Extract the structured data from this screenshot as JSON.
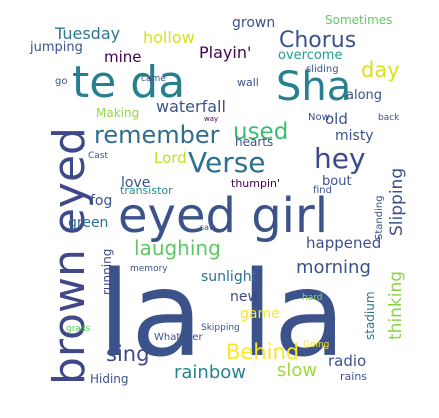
{
  "words": [
    {
      "text": "la la",
      "color": "#3b528b"
    },
    {
      "text": "eyed girl",
      "color": "#3b528b"
    },
    {
      "text": "brown eyed",
      "color": "#3f4889"
    },
    {
      "text": "te da",
      "color": "#27808e"
    },
    {
      "text": "Sha",
      "color": "#27808e"
    },
    {
      "text": "Verse",
      "color": "#2c728e"
    },
    {
      "text": "hey",
      "color": "#3e4989"
    },
    {
      "text": "remember",
      "color": "#2f6c8e"
    },
    {
      "text": "laughing",
      "color": "#5ec962"
    },
    {
      "text": "Chorus",
      "color": "#3b528b"
    },
    {
      "text": "used",
      "color": "#3ebc73"
    },
    {
      "text": "day",
      "color": "#d8e219"
    },
    {
      "text": "sing",
      "color": "#3f4889"
    },
    {
      "text": "Behind",
      "color": "#fde725"
    },
    {
      "text": "rainbow",
      "color": "#25848e"
    },
    {
      "text": "slow",
      "color": "#a0da39"
    },
    {
      "text": "morning",
      "color": "#3b528b"
    },
    {
      "text": "happened",
      "color": "#3b528b"
    },
    {
      "text": "thinking",
      "color": "#8bd646"
    },
    {
      "text": "Slipping",
      "color": "#3b528b"
    },
    {
      "text": "Tuesday",
      "color": "#2a788e"
    },
    {
      "text": "hollow",
      "color": "#d8e219"
    },
    {
      "text": "mine",
      "color": "#440154"
    },
    {
      "text": "Playin'",
      "color": "#440154"
    },
    {
      "text": "waterfall",
      "color": "#3b528b"
    },
    {
      "text": "Lord",
      "color": "#c2df23"
    },
    {
      "text": "love",
      "color": "#3b528b"
    },
    {
      "text": "fog",
      "color": "#3b528b"
    },
    {
      "text": "green",
      "color": "#2c728e"
    },
    {
      "text": "running",
      "color": "#3f4889"
    },
    {
      "text": "sunlight",
      "color": "#2c728e"
    },
    {
      "text": "new",
      "color": "#3e4989"
    },
    {
      "text": "game",
      "color": "#fde725"
    },
    {
      "text": "stadium",
      "color": "#2a788e"
    },
    {
      "text": "radio",
      "color": "#3b528b"
    },
    {
      "text": "grown",
      "color": "#3b528b"
    },
    {
      "text": "Sometimes",
      "color": "#5ec962"
    },
    {
      "text": "overcome",
      "color": "#1fa187"
    },
    {
      "text": "jumping",
      "color": "#3b528b"
    },
    {
      "text": "Making",
      "color": "#95d840"
    },
    {
      "text": "old",
      "color": "#3b528b"
    },
    {
      "text": "misty",
      "color": "#3b528b"
    },
    {
      "text": "along",
      "color": "#3b528b"
    },
    {
      "text": "bout",
      "color": "#3b528b"
    },
    {
      "text": "thumpin'",
      "color": "#440154"
    },
    {
      "text": "hearts",
      "color": "#3b528b"
    },
    {
      "text": "wall",
      "color": "#3b528b"
    },
    {
      "text": "sliding",
      "color": "#3b528b"
    },
    {
      "text": "Standing",
      "color": "#3b528b"
    },
    {
      "text": "Hiding",
      "color": "#3b528b"
    },
    {
      "text": "Whatever",
      "color": "#3b528b"
    },
    {
      "text": "memory",
      "color": "#3b528b"
    },
    {
      "text": "Skipping",
      "color": "#3b528b"
    },
    {
      "text": "grass",
      "color": "#5ec962"
    },
    {
      "text": "hard",
      "color": "#8bd646"
    },
    {
      "text": "Going",
      "color": "#fde725"
    },
    {
      "text": "rains",
      "color": "#3b528b"
    },
    {
      "text": "transistor",
      "color": "#21918c"
    },
    {
      "text": "find",
      "color": "#3b528b"
    },
    {
      "text": "go",
      "color": "#3b528b"
    },
    {
      "text": "came",
      "color": "#3b528b"
    },
    {
      "text": "Now",
      "color": "#3b528b"
    },
    {
      "text": "back",
      "color": "#3b528b"
    },
    {
      "text": "Cast",
      "color": "#3b528b"
    },
    {
      "text": "way",
      "color": "#440154"
    },
    {
      "text": "saw",
      "color": "#3b528b"
    }
  ]
}
